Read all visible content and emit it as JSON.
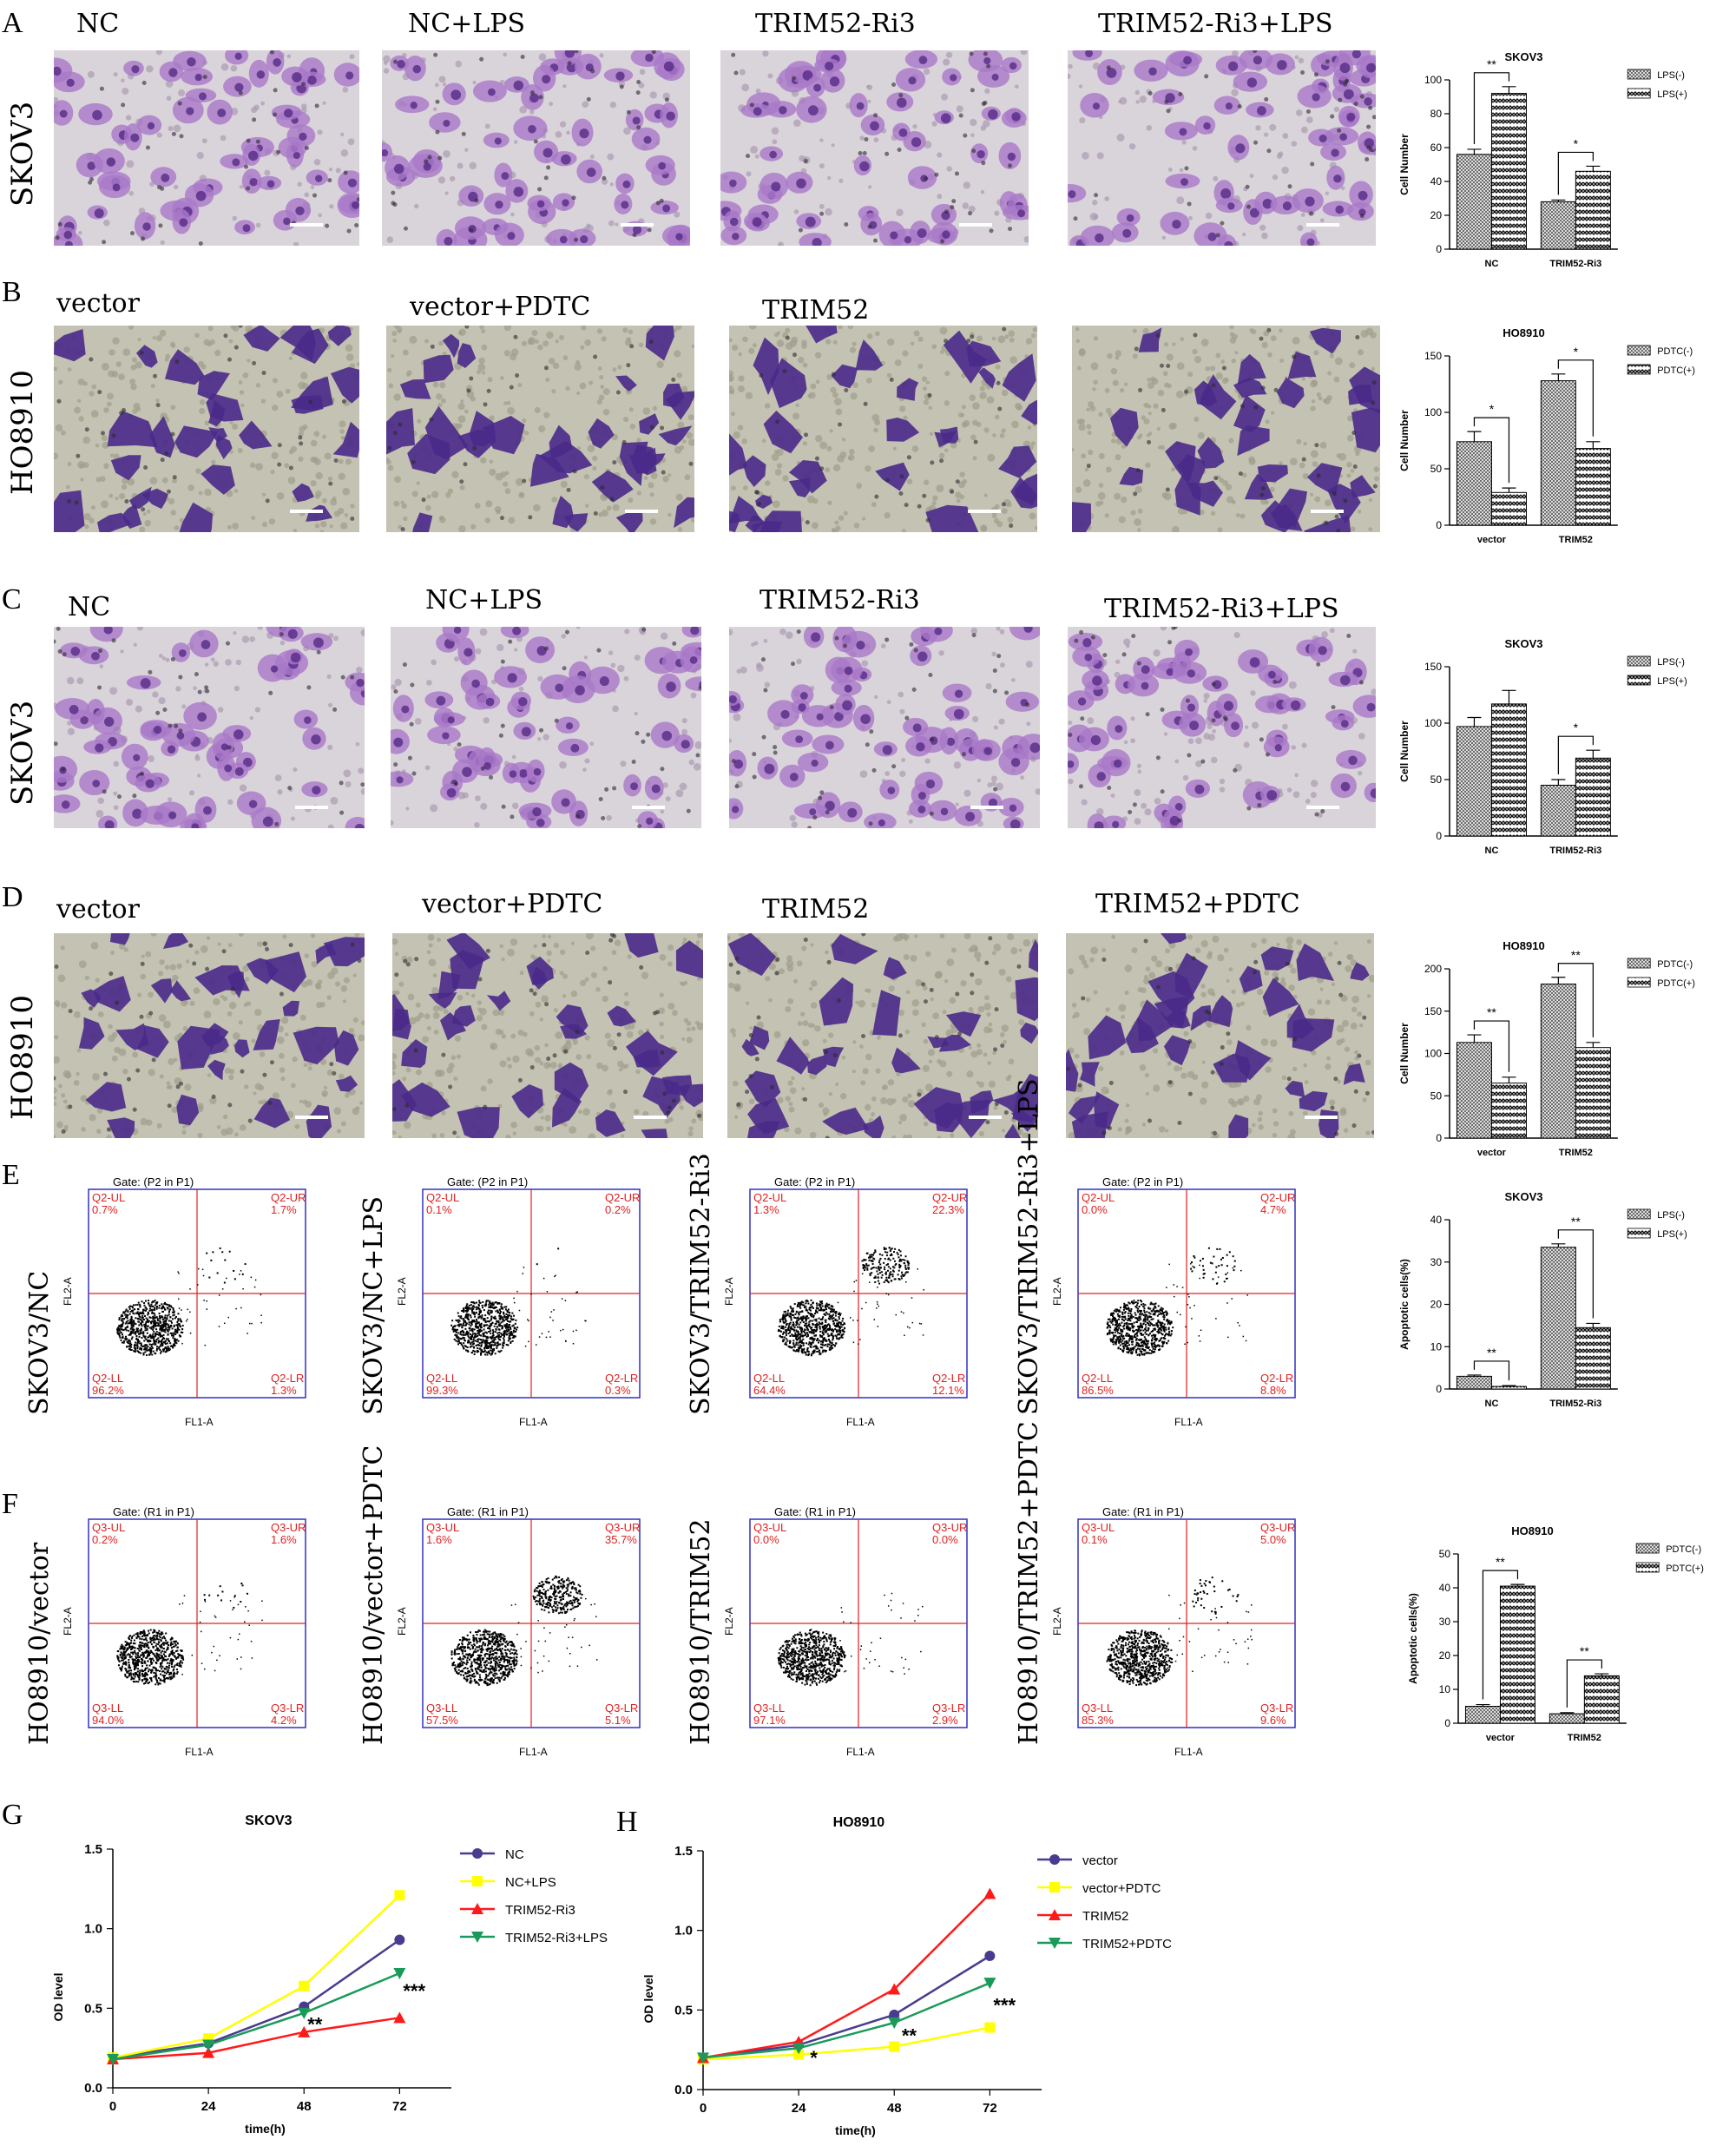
{
  "panels": {
    "A": {
      "letter": "A",
      "cell": "SKOV3",
      "conds": [
        "NC",
        "NC+LPS",
        "TRIM52-Ri3",
        "TRIM52-Ri3+LPS"
      ]
    },
    "B": {
      "letter": "B",
      "cell": "HO8910",
      "conds": [
        "vector",
        "vector+PDTC",
        "TRIM52",
        ""
      ]
    },
    "C": {
      "letter": "C",
      "cell": "SKOV3",
      "conds": [
        "NC",
        "NC+LPS",
        "TRIM52-Ri3",
        "TRIM52-Ri3+LPS"
      ]
    },
    "D": {
      "letter": "D",
      "cell": "HO8910",
      "conds": [
        "vector",
        "vector+PDTC",
        "TRIM52",
        "TRIM52+PDTC"
      ]
    },
    "E": {
      "letter": "E"
    },
    "F": {
      "letter": "F"
    },
    "G": {
      "letter": "G"
    },
    "H": {
      "letter": "H"
    }
  },
  "facs": {
    "E": [
      {
        "side": "SKOV3/NC",
        "gate": "Gate: (P2 in P1)",
        "q": "Q2",
        "ul": "0.7%",
        "ur": "1.7%",
        "ll": "96.2%",
        "lr": "1.3%"
      },
      {
        "side": "SKOV3/NC+LPS",
        "gate": "Gate: (P2 in P1)",
        "q": "Q2",
        "ul": "0.1%",
        "ur": "0.2%",
        "ll": "99.3%",
        "lr": "0.3%"
      },
      {
        "side": "SKOV3/TRIM52-Ri3",
        "gate": "Gate: (P2 in P1)",
        "q": "Q2",
        "ul": "1.3%",
        "ur": "22.3%",
        "ll": "64.4%",
        "lr": "12.1%"
      },
      {
        "side": "SKOV3/TRIM52-Ri3+LPS",
        "gate": "Gate: (P2 in P1)",
        "q": "Q2",
        "ul": "0.0%",
        "ur": "4.7%",
        "ll": "86.5%",
        "lr": "8.8%"
      }
    ],
    "F": [
      {
        "side": "HO8910/vector",
        "gate": "Gate: (R1 in P1)",
        "q": "Q3",
        "ul": "0.2%",
        "ur": "1.6%",
        "ll": "94.0%",
        "lr": "4.2%"
      },
      {
        "side": "HO8910/vector+PDTC",
        "gate": "Gate: (R1 in P1)",
        "q": "Q3",
        "ul": "1.6%",
        "ur": "35.7%",
        "ll": "57.5%",
        "lr": "5.1%"
      },
      {
        "side": "HO8910/TRIM52",
        "gate": "Gate: (R1 in P1)",
        "q": "Q3",
        "ul": "0.0%",
        "ur": "0.0%",
        "ll": "97.1%",
        "lr": "2.9%"
      },
      {
        "side": "HO8910/TRIM52+PDTC",
        "gate": "Gate: (R1 in P1)",
        "q": "Q3",
        "ul": "0.1%",
        "ur": "5.0%",
        "ll": "85.3%",
        "lr": "9.6%"
      }
    ],
    "xaxis": "FL1-A",
    "yaxis": "FL2-A"
  },
  "chart_data": [
    {
      "id": "A",
      "type": "bar",
      "title": "SKOV3",
      "ylabel": "Cell Number",
      "categories": [
        "NC",
        "TRIM52-Ri3"
      ],
      "ylim": [
        0,
        100
      ],
      "yticks": [
        0,
        20,
        40,
        60,
        80,
        100
      ],
      "series": [
        {
          "name": "LPS(-)",
          "values": [
            56,
            28
          ],
          "errors": [
            3,
            1
          ]
        },
        {
          "name": "LPS(+)",
          "values": [
            92,
            46
          ],
          "errors": [
            4,
            3
          ]
        }
      ],
      "sig": [
        {
          "group": 0,
          "text": "**"
        },
        {
          "group": 1,
          "text": "*"
        }
      ]
    },
    {
      "id": "B",
      "type": "bar",
      "title": "HO8910",
      "ylabel": "Cell Number",
      "categories": [
        "vector",
        "TRIM52"
      ],
      "ylim": [
        0,
        150
      ],
      "yticks": [
        0,
        50,
        100,
        150
      ],
      "series": [
        {
          "name": "PDTC(-)",
          "values": [
            74,
            128
          ],
          "errors": [
            9,
            6
          ]
        },
        {
          "name": "PDTC(+)",
          "values": [
            29,
            68
          ],
          "errors": [
            4,
            6
          ]
        }
      ],
      "sig": [
        {
          "group": 0,
          "text": "*"
        },
        {
          "group": 1,
          "text": "*"
        }
      ]
    },
    {
      "id": "C",
      "type": "bar",
      "title": "SKOV3",
      "ylabel": "Cell Number",
      "categories": [
        "NC",
        "TRIM52-Ri3"
      ],
      "ylim": [
        0,
        150
      ],
      "yticks": [
        0,
        50,
        100,
        150
      ],
      "series": [
        {
          "name": "LPS(-)",
          "values": [
            97,
            45
          ],
          "errors": [
            8,
            5
          ]
        },
        {
          "name": "LPS(+)",
          "values": [
            117,
            69
          ],
          "errors": [
            12,
            7
          ]
        }
      ],
      "sig": [
        {
          "group": 1,
          "text": "*"
        }
      ]
    },
    {
      "id": "D",
      "type": "bar",
      "title": "HO8910",
      "ylabel": "Cell Number",
      "categories": [
        "vector",
        "TRIM52"
      ],
      "ylim": [
        0,
        200
      ],
      "yticks": [
        0,
        50,
        100,
        150,
        200
      ],
      "series": [
        {
          "name": "PDTC(-)",
          "values": [
            113,
            182
          ],
          "errors": [
            9,
            8
          ]
        },
        {
          "name": "PDTC(+)",
          "values": [
            65,
            107
          ],
          "errors": [
            7,
            6
          ]
        }
      ],
      "sig": [
        {
          "group": 0,
          "text": "**"
        },
        {
          "group": 1,
          "text": "**"
        }
      ]
    },
    {
      "id": "E",
      "type": "bar",
      "title": "SKOV3",
      "ylabel": "Apoptotic cells(%)",
      "categories": [
        "NC",
        "TRIM52-Ri3"
      ],
      "ylim": [
        0,
        40
      ],
      "yticks": [
        0,
        10,
        20,
        30,
        40
      ],
      "series": [
        {
          "name": "LPS(-)",
          "values": [
            3,
            33.5
          ],
          "errors": [
            0.3,
            0.8
          ]
        },
        {
          "name": "LPS(+)",
          "values": [
            0.6,
            14.5
          ],
          "errors": [
            0.2,
            1
          ]
        }
      ],
      "sig": [
        {
          "group": 0,
          "text": "**"
        },
        {
          "group": 1,
          "text": "**"
        }
      ]
    },
    {
      "id": "F",
      "type": "bar",
      "title": "HO8910",
      "ylabel": "Apoptotic cells(%)",
      "categories": [
        "vector",
        "TRIM52"
      ],
      "ylim": [
        0,
        50
      ],
      "yticks": [
        0,
        10,
        20,
        30,
        40,
        50
      ],
      "series": [
        {
          "name": "PDTC(-)",
          "values": [
            5,
            2.8
          ],
          "errors": [
            0.5,
            0.3
          ]
        },
        {
          "name": "PDTC(+)",
          "values": [
            40.5,
            14
          ],
          "errors": [
            0.5,
            0.6
          ]
        }
      ],
      "sig": [
        {
          "group": 0,
          "text": "**"
        },
        {
          "group": 1,
          "text": "**"
        }
      ]
    },
    {
      "id": "G",
      "type": "line",
      "title": "SKOV3",
      "xlabel": "time(h)",
      "ylabel": "OD level",
      "x": [
        0,
        24,
        48,
        72
      ],
      "ylim": [
        0,
        1.5
      ],
      "yticks": [
        0,
        0.5,
        1.0,
        1.5
      ],
      "ytick_labels": [
        "0.0",
        "0.5",
        "1.0",
        "1.5"
      ],
      "series": [
        {
          "name": "NC",
          "color": "#4b3b8f",
          "marker": "circle",
          "values": [
            0.19,
            0.28,
            0.51,
            0.93
          ]
        },
        {
          "name": "NC+LPS",
          "color": "#ffff00",
          "marker": "square",
          "values": [
            0.19,
            0.31,
            0.64,
            1.21
          ]
        },
        {
          "name": "TRIM52-Ri3",
          "color": "#ff1a1a",
          "marker": "triangle",
          "values": [
            0.18,
            0.22,
            0.35,
            0.44
          ]
        },
        {
          "name": "TRIM52-Ri3+LPS",
          "color": "#1a9a5a",
          "marker": "tridown",
          "values": [
            0.18,
            0.27,
            0.47,
            0.72
          ]
        }
      ],
      "annotations": [
        {
          "x": 48,
          "y": 0.39,
          "text": "**"
        },
        {
          "x": 72,
          "y": 0.6,
          "text": "***"
        }
      ]
    },
    {
      "id": "H",
      "type": "line",
      "title": "HO8910",
      "xlabel": "time(h)",
      "ylabel": "OD level",
      "x": [
        0,
        24,
        48,
        72
      ],
      "ylim": [
        0,
        1.5
      ],
      "yticks": [
        0,
        0.5,
        1.0,
        1.5
      ],
      "ytick_labels": [
        "0.0",
        "0.5",
        "1.0",
        "1.5"
      ],
      "series": [
        {
          "name": "vector",
          "color": "#4b3b8f",
          "marker": "circle",
          "values": [
            0.2,
            0.28,
            0.47,
            0.84
          ]
        },
        {
          "name": "vector+PDTC",
          "color": "#ffff00",
          "marker": "square",
          "values": [
            0.19,
            0.22,
            0.27,
            0.39
          ]
        },
        {
          "name": "TRIM52",
          "color": "#ff1a1a",
          "marker": "triangle",
          "values": [
            0.2,
            0.3,
            0.63,
            1.23
          ]
        },
        {
          "name": "TRIM52+PDTC",
          "color": "#1a9a5a",
          "marker": "tridown",
          "values": [
            0.2,
            0.26,
            0.42,
            0.67
          ]
        }
      ],
      "annotations": [
        {
          "x": 26,
          "y": 0.19,
          "text": "*"
        },
        {
          "x": 49,
          "y": 0.33,
          "text": "**"
        },
        {
          "x": 72,
          "y": 0.52,
          "text": "***"
        }
      ]
    }
  ]
}
